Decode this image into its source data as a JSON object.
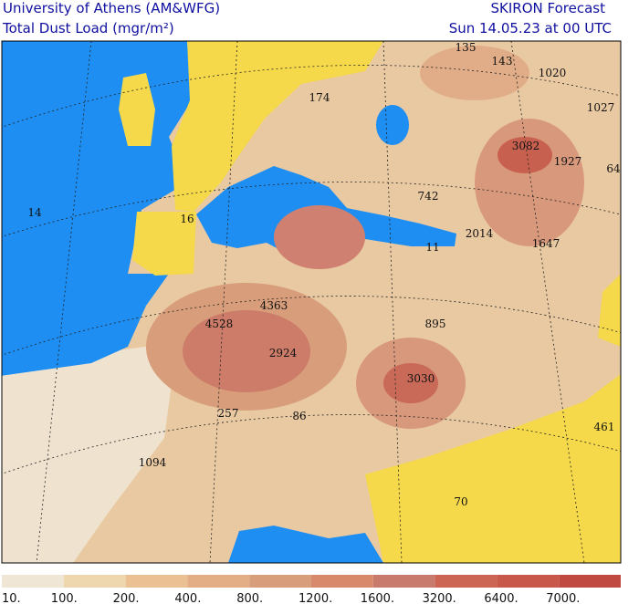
{
  "header": {
    "left": [
      "University of Athens (AM&WFG)",
      "Total Dust Load (mgr/m²)"
    ],
    "right": [
      "SKIRON Forecast",
      "Sun 14.05.23 at 00 UTC"
    ]
  },
  "map_labels": [
    "14",
    "16",
    "174",
    "135",
    "143",
    "1020",
    "1027",
    "3082",
    "1927",
    "64",
    "742",
    "2014",
    "1647",
    "11",
    "4363",
    "4528",
    "2924",
    "895",
    "3030",
    "257",
    "86",
    "461",
    "1094",
    "70"
  ],
  "colorbar": {
    "labels": [
      "10.",
      "100.",
      "200.",
      "400.",
      "800.",
      "1200.",
      "1600.",
      "3200.",
      "6400.",
      "7000."
    ],
    "colors": [
      "#efe6d6",
      "#eed6ae",
      "#ebc194",
      "#e3ad86",
      "#d89e7b",
      "#d8896b",
      "#c87a6c",
      "#cc6554",
      "#c7584a",
      "#c04a42"
    ]
  }
}
